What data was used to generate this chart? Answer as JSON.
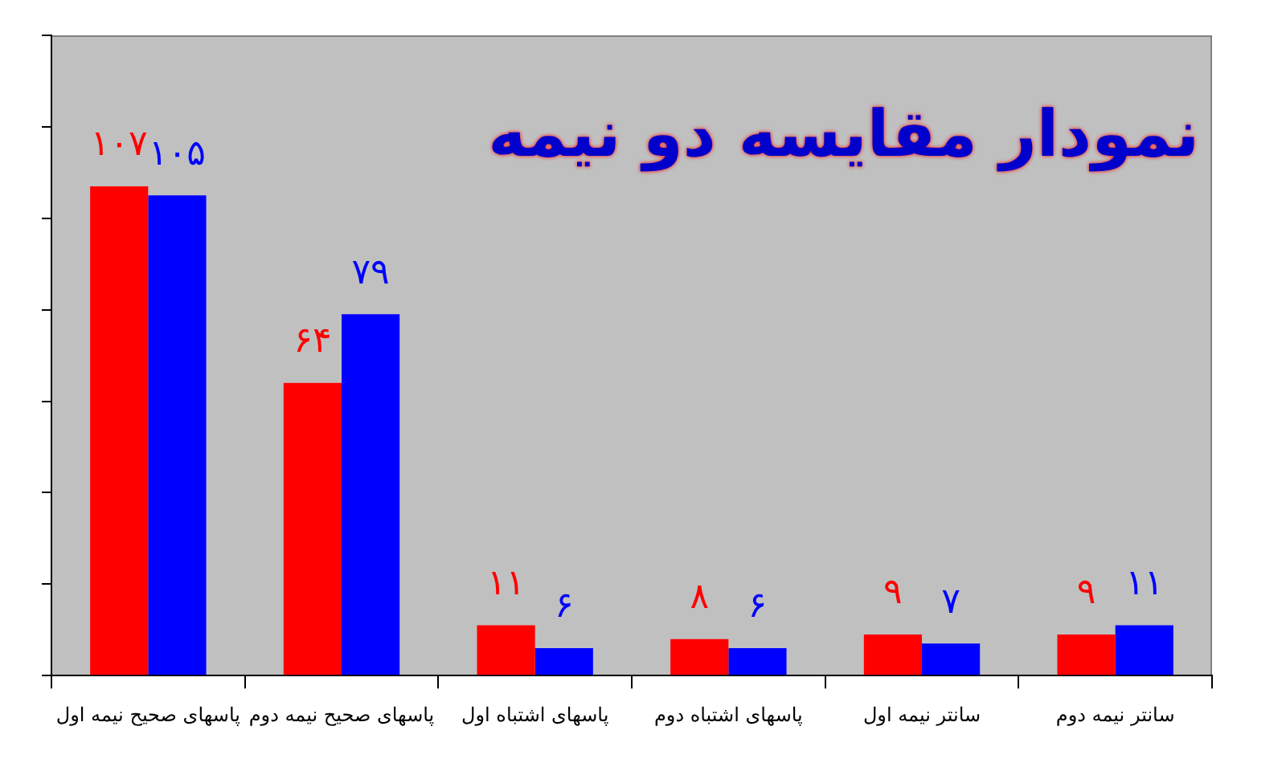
{
  "chart_data": {
    "type": "bar",
    "title": "نمودار مقایسه دو نیمه",
    "categories": [
      "پاسهای صحیح نیمه اول",
      "پاسهای صحیح نیمه دوم",
      "پاسهای اشتباه اول",
      "پاسهای اشتباه دوم",
      "سانتر نیمه اول",
      "سانتر نیمه دوم"
    ],
    "series": [
      {
        "color": "#ff0000",
        "values": [
          107,
          64,
          11,
          8,
          9,
          9
        ],
        "value_labels": [
          "۱۰۷",
          "۶۴",
          "۱۱",
          "۸",
          "۹",
          "۹"
        ]
      },
      {
        "color": "#0000ff",
        "values": [
          105,
          79,
          6,
          6,
          7,
          11
        ],
        "value_labels": [
          "۱۰۵",
          "۷۹",
          "۶",
          "۶",
          "۷",
          "۱۱"
        ]
      }
    ],
    "ylim": [
      0,
      140
    ],
    "yticks": [
      {
        "value": 0,
        "label": null
      },
      {
        "value": 20,
        "label": null
      },
      {
        "value": 40,
        "label": null
      },
      {
        "value": 60,
        "label": null
      },
      {
        "value": 80,
        "label": null
      },
      {
        "value": 100,
        "label": null
      },
      {
        "value": 120,
        "label": null
      },
      {
        "value": 140,
        "label": null
      }
    ],
    "tick_labels": "x"
  }
}
